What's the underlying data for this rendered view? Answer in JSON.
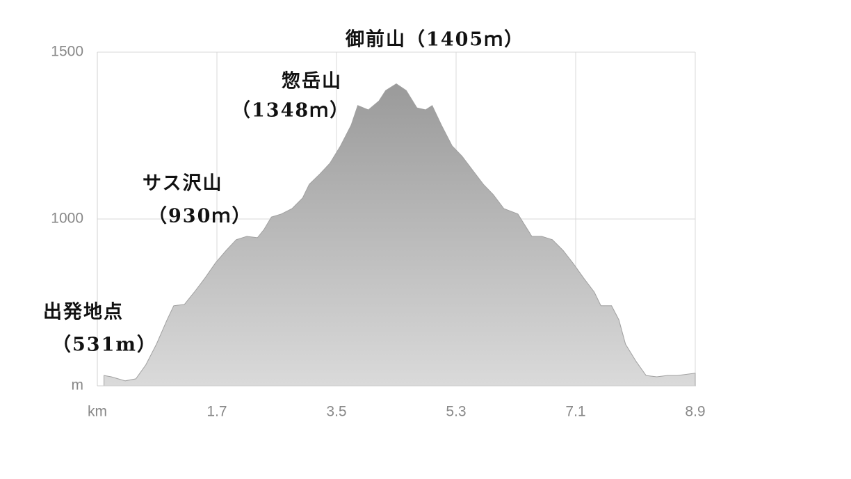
{
  "chart_data": {
    "type": "area",
    "x": [
      0,
      0.11,
      0.32,
      0.48,
      0.63,
      0.79,
      0.95,
      1.05,
      1.21,
      1.36,
      1.52,
      1.68,
      1.84,
      1.99,
      2.15,
      2.31,
      2.41,
      2.52,
      2.67,
      2.83,
      2.99,
      3.09,
      3.25,
      3.4,
      3.56,
      3.72,
      3.82,
      3.98,
      4.14,
      4.24,
      4.4,
      4.55,
      4.71,
      4.84,
      4.94,
      5.08,
      5.24,
      5.39,
      5.55,
      5.71,
      5.86,
      6.02,
      6.23,
      6.44,
      6.59,
      6.75,
      6.91,
      7.07,
      7.22,
      7.38,
      7.48,
      7.64,
      7.75,
      7.85,
      8.01,
      8.16,
      8.32,
      8.48,
      8.63,
      8.9
    ],
    "values": [
      531,
      527,
      515,
      521,
      563,
      625,
      698,
      740,
      744,
      781,
      823,
      869,
      906,
      938,
      948,
      944,
      969,
      1006,
      1015,
      1031,
      1063,
      1104,
      1135,
      1167,
      1219,
      1281,
      1340,
      1327,
      1354,
      1385,
      1405,
      1385,
      1333,
      1327,
      1340,
      1281,
      1219,
      1188,
      1146,
      1104,
      1073,
      1031,
      1015,
      948,
      948,
      938,
      906,
      865,
      823,
      781,
      740,
      740,
      698,
      625,
      573,
      531,
      527,
      531,
      531,
      538
    ],
    "color": "#a0a0a0",
    "xlim": [
      -0.1,
      8.9
    ],
    "xticks": [
      {
        "value": -0.1,
        "label": "km"
      },
      1.7,
      3.5,
      5.3,
      7.1,
      8.9
    ],
    "ylim": [
      500,
      1500
    ],
    "yticks": [
      {
        "value": 500,
        "label": "m"
      },
      1000,
      1500
    ],
    "grid": true,
    "annotations": [
      "御前山（1405ｍ）",
      "惣岳山",
      "（1348ｍ）",
      "サス沢山",
      "（930ｍ）",
      "出発地点",
      "（531m）"
    ]
  }
}
